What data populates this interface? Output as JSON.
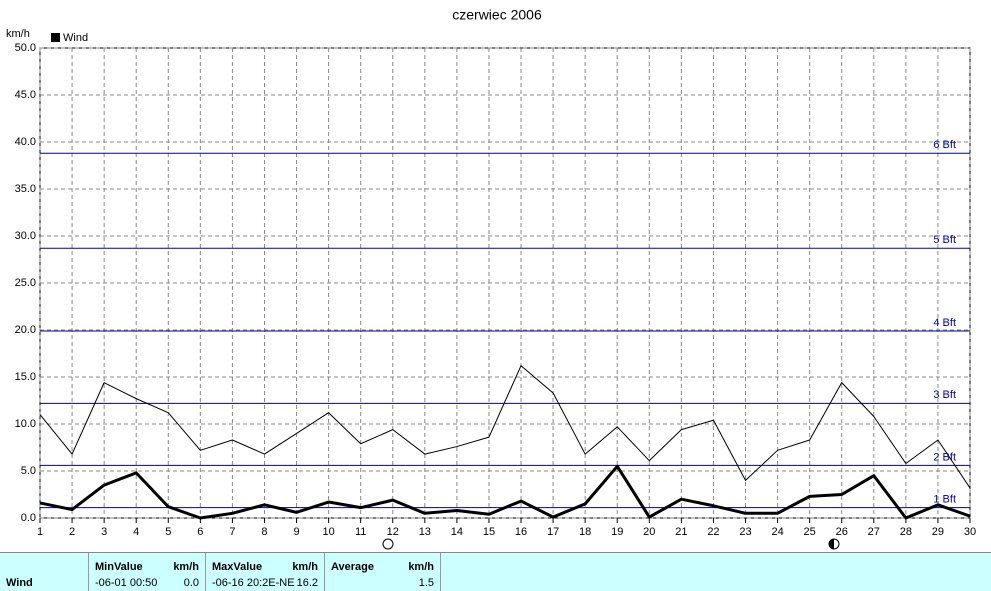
{
  "chart_data": {
    "type": "line",
    "title": "czerwiec 2006",
    "y_label": "km/h",
    "x": [
      1,
      2,
      3,
      4,
      5,
      6,
      7,
      8,
      9,
      10,
      11,
      12,
      13,
      14,
      15,
      16,
      17,
      18,
      19,
      20,
      21,
      22,
      23,
      24,
      25,
      26,
      27,
      28,
      29,
      30
    ],
    "xlim": [
      1,
      30
    ],
    "ylim": [
      0,
      50
    ],
    "yticks": [
      {
        "value": 0,
        "label": "0.0"
      },
      {
        "value": 5,
        "label": "5.0"
      },
      {
        "value": 10,
        "label": "10.0"
      },
      {
        "value": 15,
        "label": "15.0"
      },
      {
        "value": 20,
        "label": "20.0"
      },
      {
        "value": 25,
        "label": "25.0"
      },
      {
        "value": 30,
        "label": "30.0"
      },
      {
        "value": 35,
        "label": "35.0"
      },
      {
        "value": 40,
        "label": "40.0"
      },
      {
        "value": 45,
        "label": "45.0"
      },
      {
        "value": 50,
        "label": "50.0"
      }
    ],
    "grid": true,
    "series": [
      {
        "name": "Wind",
        "color": "#000000",
        "width": 3,
        "values": [
          1.6,
          0.9,
          3.5,
          4.8,
          1.2,
          0.0,
          0.5,
          1.4,
          0.6,
          1.7,
          1.1,
          1.9,
          0.5,
          0.8,
          0.4,
          1.8,
          0.1,
          1.5,
          5.5,
          0.1,
          2.0,
          1.3,
          0.5,
          0.5,
          2.3,
          2.5,
          4.5,
          0.0,
          1.4,
          0.2
        ]
      },
      {
        "color": "#000000",
        "width": 1,
        "values": [
          11.0,
          6.8,
          14.4,
          12.7,
          11.2,
          7.2,
          8.3,
          6.8,
          9.0,
          11.2,
          7.9,
          9.4,
          6.8,
          7.6,
          8.6,
          16.2,
          13.3,
          6.8,
          9.7,
          6.1,
          9.4,
          10.4,
          4.0,
          7.2,
          8.3,
          14.4,
          10.8,
          5.8,
          8.3,
          3.2
        ]
      }
    ],
    "reference_lines": {
      "color": "#0000aa",
      "lines": [
        {
          "value": 1.1,
          "label": "1 Bft"
        },
        {
          "value": 5.6,
          "label": "2 Bft"
        },
        {
          "value": 12.2,
          "label": "3 Bft"
        },
        {
          "value": 19.9,
          "label": "4 Bft"
        },
        {
          "value": 28.7,
          "label": "5 Bft"
        },
        {
          "value": 38.8,
          "label": "6 Bft"
        }
      ]
    }
  },
  "table": {
    "row_label": "Wind",
    "headers": [
      "MinValue",
      "km/h",
      "MaxValue",
      "km/h",
      "Average",
      "km/h"
    ],
    "min_time": "-06-01  00:50",
    "min_value": "0.0",
    "max_time": "-06-16  20:2E-NE",
    "max_value": "16.2",
    "average": "1.5"
  }
}
